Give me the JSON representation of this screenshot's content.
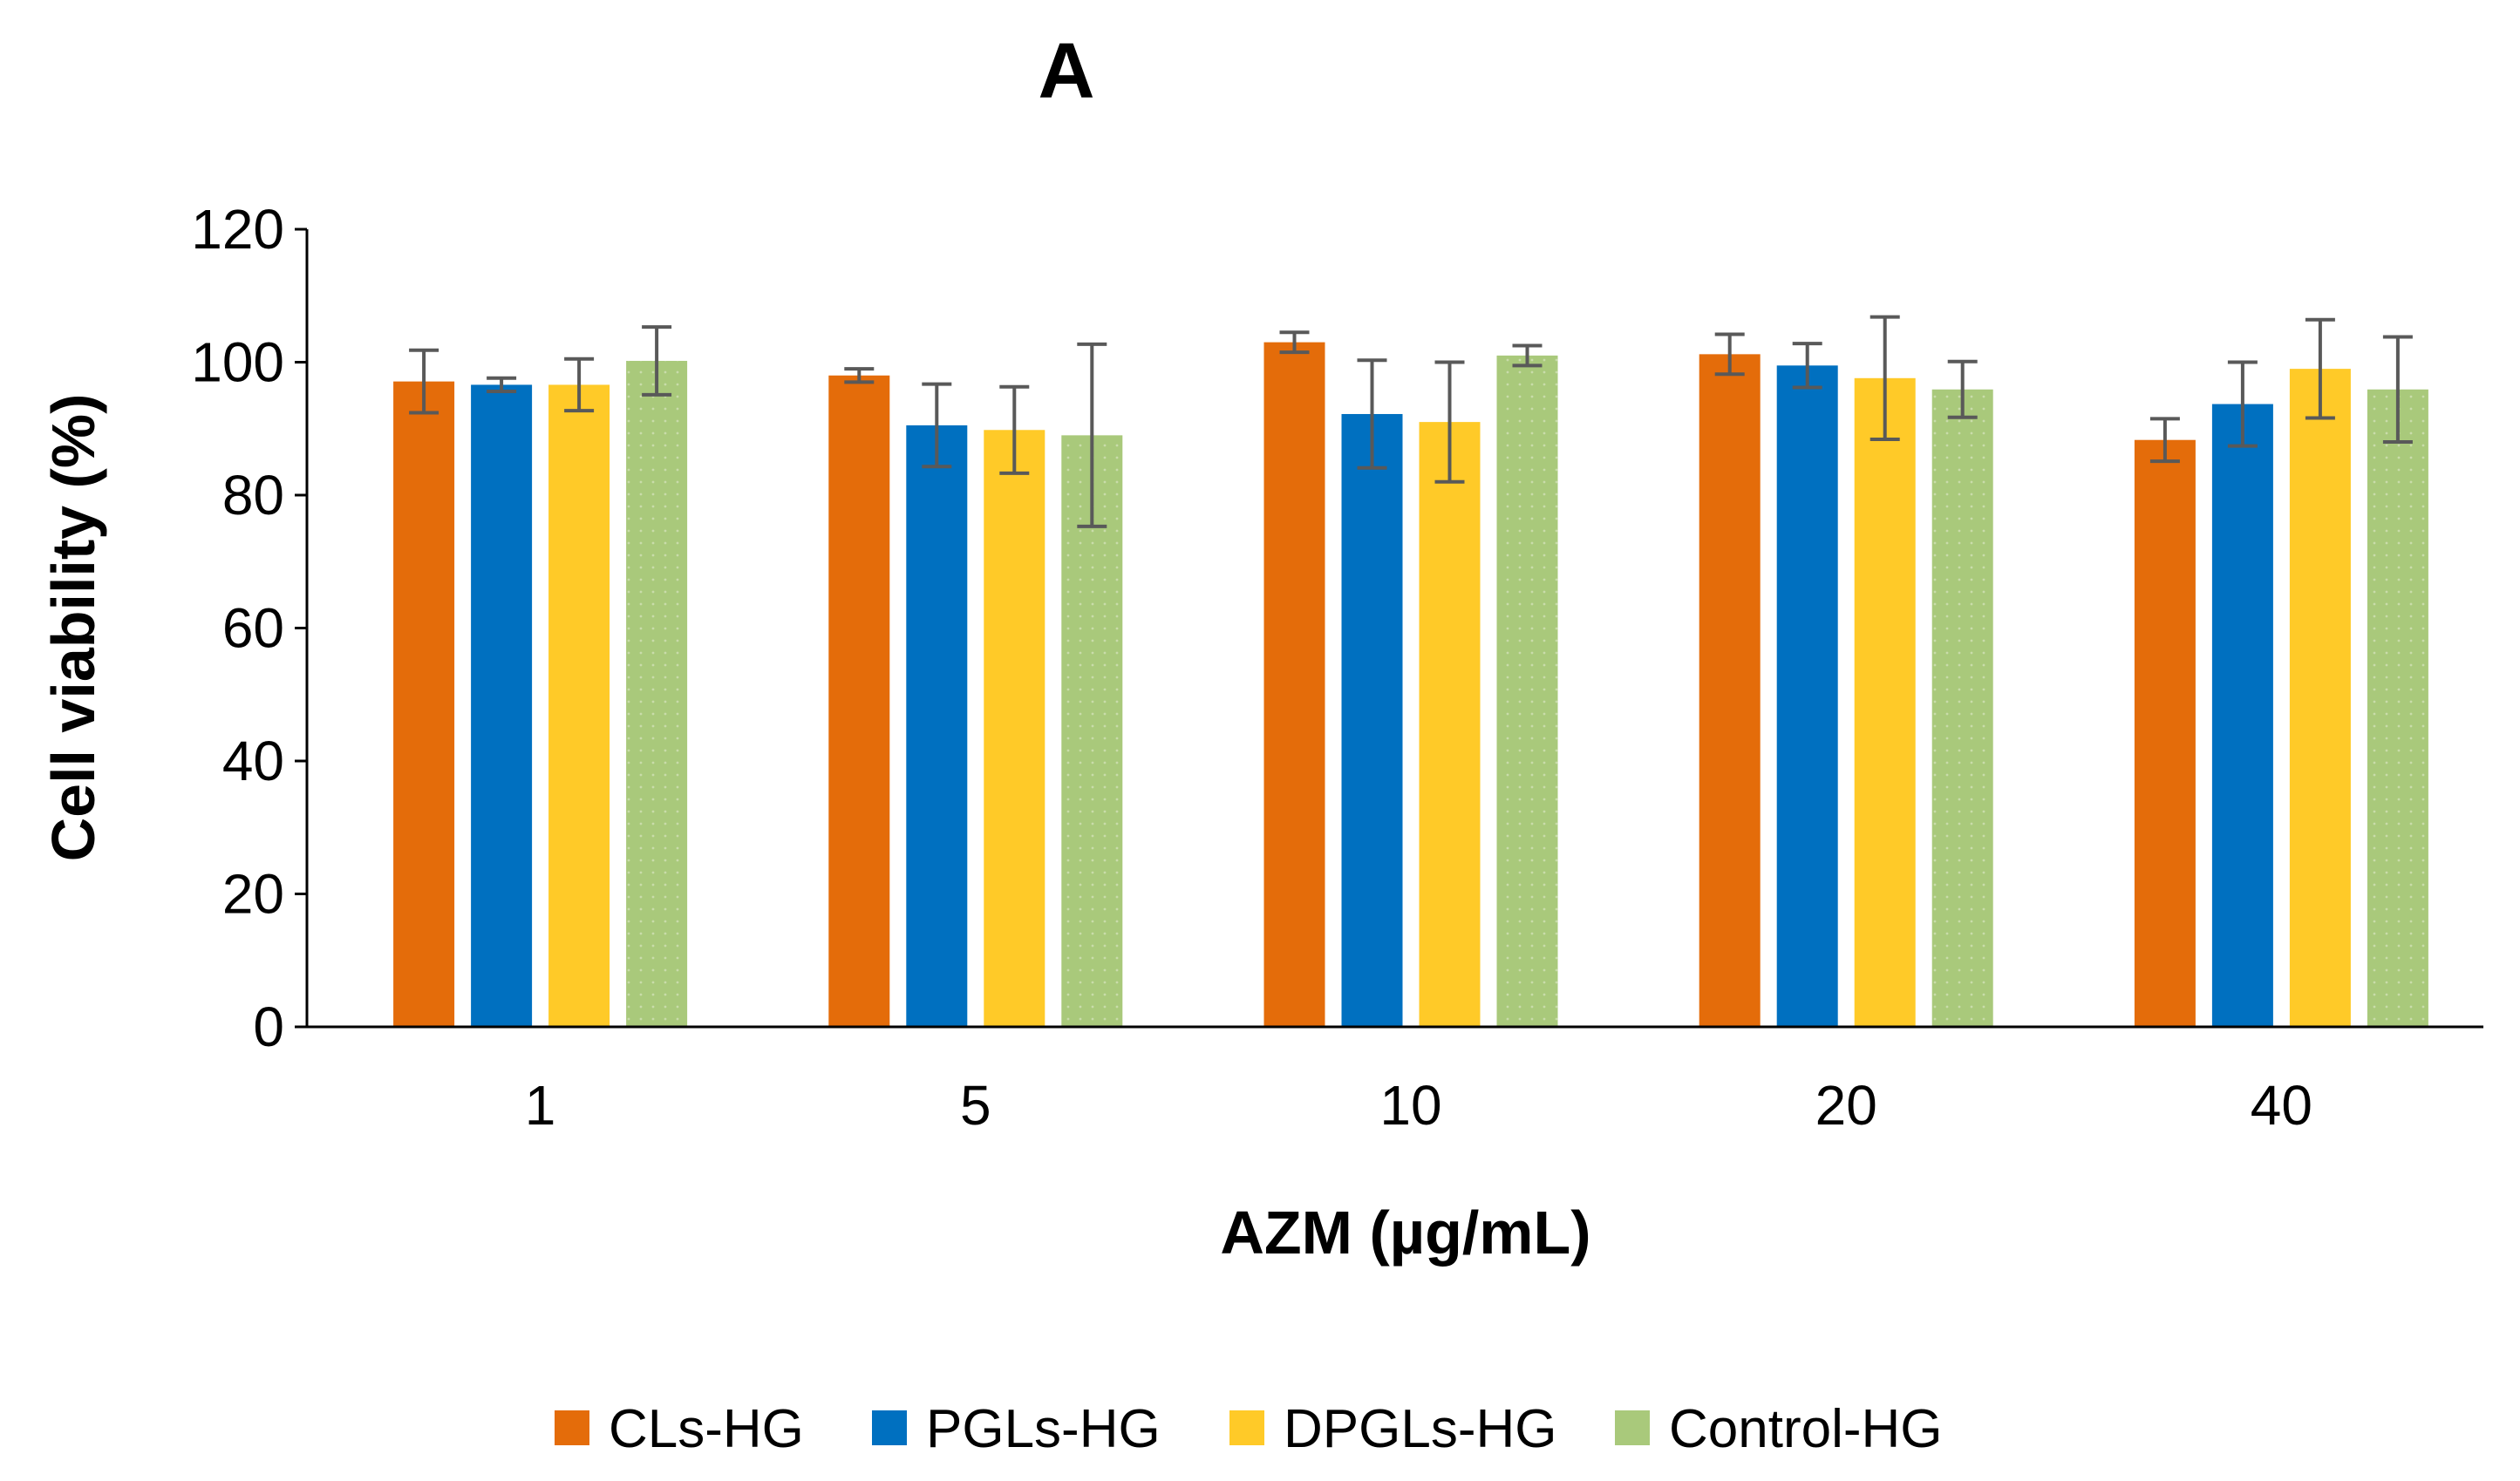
{
  "chart_data": {
    "type": "bar",
    "title": "A",
    "xlabel": "AZM (µg/mL)",
    "ylabel": "Cell viability (%)",
    "ylim": [
      0,
      120
    ],
    "yticks": [
      0,
      20,
      40,
      60,
      80,
      100,
      120
    ],
    "categories": [
      "1",
      "5",
      "10",
      "20",
      "40"
    ],
    "grid": false,
    "legend_position": "bottom",
    "series": [
      {
        "name": "CLs-HG",
        "color": "#E46C0A",
        "values": [
          97.1,
          98.0,
          103.0,
          101.2,
          88.3
        ],
        "errors": [
          4.7,
          1.0,
          1.5,
          3.0,
          3.2
        ]
      },
      {
        "name": "PGLs-HG",
        "color": "#0070C0",
        "values": [
          96.6,
          90.5,
          92.2,
          99.5,
          93.7
        ],
        "errors": [
          1.0,
          6.2,
          8.1,
          3.3,
          6.3
        ]
      },
      {
        "name": "DPGLs-HG",
        "color": "#FFCA28",
        "values": [
          96.6,
          89.8,
          91.0,
          97.6,
          99.0
        ],
        "errors": [
          3.9,
          6.5,
          9.0,
          9.2,
          7.4
        ]
      },
      {
        "name": "Control-HG",
        "color": "#A9C97B",
        "values": [
          100.2,
          89.0,
          101.0,
          95.9,
          95.9
        ],
        "errors": [
          5.1,
          13.7,
          1.5,
          4.2,
          7.9
        ]
      }
    ]
  }
}
